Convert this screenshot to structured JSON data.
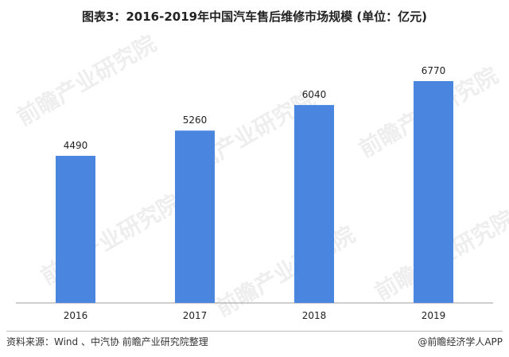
{
  "title": "图表3：2016-2019年中国汽车售后维修市场规模 (单位：亿元)",
  "source": "资料来源：Wind 、中汽协 前瞻产业研究院整理",
  "brand": "@前瞻经济学人APP",
  "watermark": "前瞻产业研究院",
  "colors": {
    "bar": "#4a86e0",
    "axis": "#9e9e9e"
  },
  "chart_data": {
    "type": "bar",
    "title": "图表3：2016-2019年中国汽车售后维修市场规模 (单位：亿元)",
    "categories": [
      "2016",
      "2017",
      "2018",
      "2019"
    ],
    "values": [
      4490,
      5260,
      6040,
      6770
    ],
    "ylim": [
      0,
      7500
    ],
    "grid": false,
    "data_labels": true
  }
}
